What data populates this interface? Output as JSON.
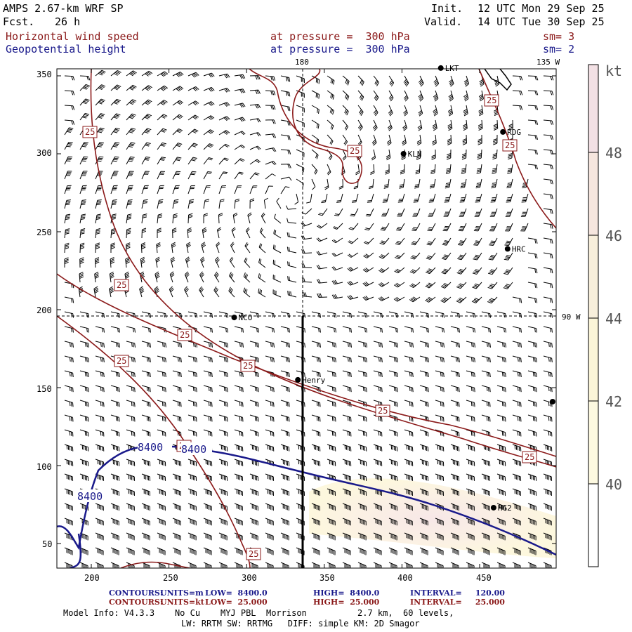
{
  "header": {
    "model_title": "AMPS 2.67-km WRF SP",
    "fcst_label": "Fcst.",
    "fcst_value": "26 h",
    "init_label": "Init.",
    "init_value": "12 UTC Mon 29 Sep 25",
    "valid_label": "Valid.",
    "valid_value": "14 UTC Tue 30 Sep 25",
    "field1": "Horizontal wind speed",
    "field1_level": "at pressure =  300 hPa",
    "field1_sm": "sm= 3",
    "field2": "Geopotential height",
    "field2_level": "at pressure =  300 hPa",
    "field2_sm": "sm= 2"
  },
  "map": {
    "lon_label_top_180": "180",
    "lon_label_top_135w": "135 W",
    "lon_label_right_90w": "90 W",
    "x_ticks": [
      "200",
      "250",
      "300",
      "350",
      "400",
      "450"
    ],
    "y_ticks": [
      "350",
      "300",
      "250",
      "200",
      "150",
      "100",
      "50"
    ],
    "stations": [
      {
        "name": "LKT",
        "x": 425,
        "y": 355
      },
      {
        "name": "RDG",
        "x": 465,
        "y": 314
      },
      {
        "name": "KLN",
        "x": 401,
        "y": 300
      },
      {
        "name": "HRC",
        "x": 468,
        "y": 239
      },
      {
        "name": "NCO",
        "x": 292,
        "y": 195
      },
      {
        "name": "Henry",
        "x": 333,
        "y": 155
      },
      {
        "name": "HG2",
        "x": 459,
        "y": 73
      },
      {
        "name": "",
        "x": 497,
        "y": 141
      }
    ],
    "wind_contour_label": "25",
    "height_contour_label": "8400",
    "colorbar_unit": "kt",
    "colorbar_ticks": [
      "48",
      "46",
      "44",
      "42",
      "40"
    ]
  },
  "footer": {
    "line1_label": "CONTOURS:",
    "line1_units": "UNITS=m",
    "line1_low": "LOW=  8400.0",
    "line1_high": "HIGH=  8400.0",
    "line1_interval": "INTERVAL=     120.00",
    "line2_label": "CONTOURS:",
    "line2_units": "UNITS=kt",
    "line2_low": "LOW=  25.000",
    "line2_high": "HIGH=  25.000",
    "line2_interval": "INTERVAL=     25.000",
    "model_info": "Model Info: V4.3.3    No Cu    MYJ PBL  Morrison          2.7 km,  60 levels,",
    "model_info2": "LW: RRTM SW: RRTMG   DIFF: simple KM: 2D Smagor"
  },
  "colors": {
    "wind_contour": "#8b1a1a",
    "height_contour": "#1a1a8b",
    "shade_light": "#fdf7dc",
    "shade_pink": "#f7e6e6"
  }
}
